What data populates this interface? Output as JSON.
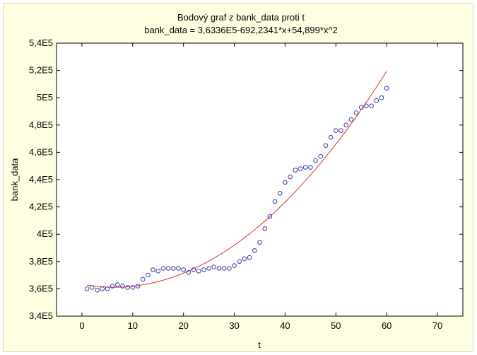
{
  "chart_data": {
    "type": "scatter",
    "title": "Bodový graf z bank_data proti t",
    "subtitle": "bank_data = 3,6336E5-692,2341*x+54,899*x^2",
    "xlabel": "t",
    "ylabel": "bank_data",
    "xlim": [
      -5,
      75
    ],
    "ylim": [
      340000,
      540000
    ],
    "x_ticks": [
      0,
      10,
      20,
      30,
      40,
      50,
      60,
      70
    ],
    "y_ticks": [
      340000,
      360000,
      380000,
      400000,
      420000,
      440000,
      460000,
      480000,
      500000,
      520000,
      540000
    ],
    "y_tick_labels": [
      "3,4E5",
      "3,6E5",
      "3,8E5",
      "4E5",
      "4,2E5",
      "4,4E5",
      "4,6E5",
      "4,8E5",
      "5E5",
      "5,2E5",
      "5,4E5"
    ],
    "grid": false,
    "point_color": "#3a3aa8",
    "fit_color": "#e03030",
    "fit": {
      "type": "quadratic",
      "coefficients": [
        363360,
        -692.2341,
        54.899
      ],
      "x_range": [
        1,
        60
      ]
    },
    "x": [
      1,
      2,
      3,
      4,
      5,
      6,
      7,
      8,
      9,
      10,
      11,
      12,
      13,
      14,
      15,
      16,
      17,
      18,
      19,
      20,
      21,
      22,
      23,
      24,
      25,
      26,
      27,
      28,
      29,
      30,
      31,
      32,
      33,
      34,
      35,
      36,
      37,
      38,
      39,
      40,
      41,
      42,
      43,
      44,
      45,
      46,
      47,
      48,
      49,
      50,
      51,
      52,
      53,
      54,
      55,
      56,
      57,
      58,
      59,
      60
    ],
    "y": [
      360000,
      361000,
      359000,
      360000,
      360000,
      362000,
      363000,
      362000,
      361000,
      361000,
      362000,
      367000,
      370000,
      374000,
      373000,
      375000,
      375000,
      375000,
      375000,
      374000,
      372000,
      374000,
      373000,
      374000,
      375000,
      376000,
      375000,
      375000,
      375000,
      377000,
      380000,
      382000,
      383000,
      388000,
      394000,
      404000,
      413000,
      424000,
      430000,
      438000,
      442000,
      447000,
      448000,
      449000,
      449000,
      454000,
      457000,
      465000,
      471000,
      476000,
      476000,
      480000,
      484000,
      489000,
      493000,
      494000,
      494000,
      498000,
      500000,
      507000
    ]
  }
}
